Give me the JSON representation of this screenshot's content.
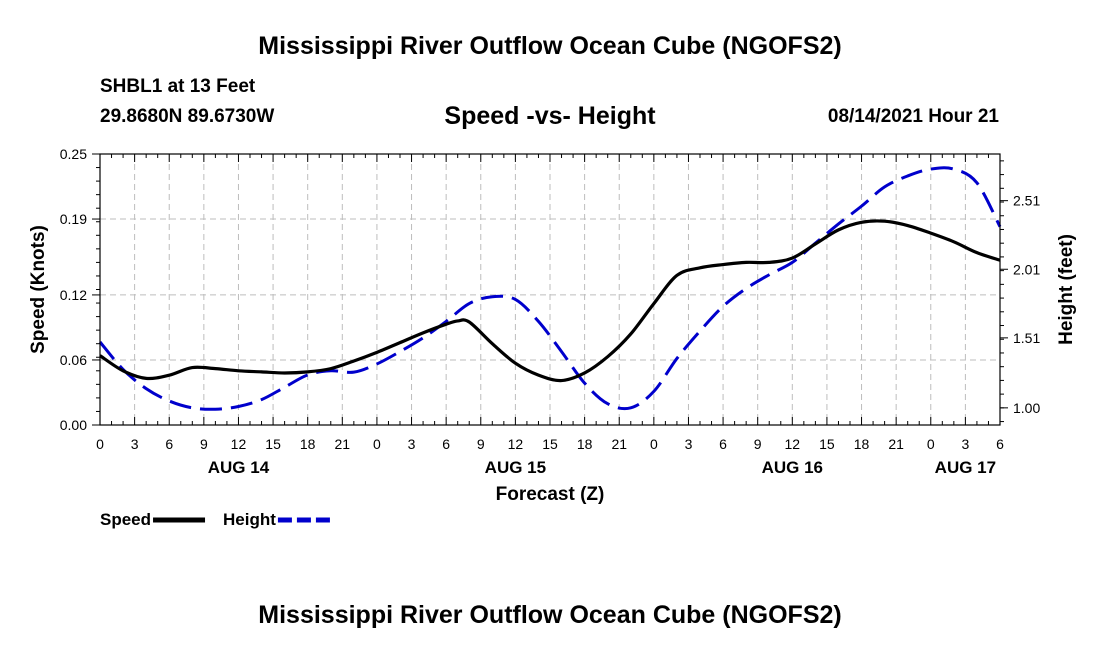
{
  "header": {
    "title": "Mississippi River Outflow Ocean Cube (NGOFS2)",
    "station": "SHBL1 at 13 Feet",
    "coords": "29.8680N  89.6730W",
    "subtitle": "Speed -vs- Height",
    "datetime": "08/14/2021 Hour 21"
  },
  "footer": {
    "title": "Mississippi River Outflow Ocean Cube (NGOFS2)"
  },
  "chart_data": {
    "type": "line",
    "title": "Speed -vs- Height",
    "xlabel": "Forecast (Z)",
    "ylabel": "Speed (Knots)",
    "y2label": "Height (feet)",
    "xlim": [
      0,
      78
    ],
    "ylim": [
      0,
      0.25
    ],
    "y2lim": [
      0.875,
      2.85
    ],
    "grid": true,
    "x_ticks": [
      0,
      3,
      6,
      9,
      12,
      15,
      18,
      21,
      24,
      27,
      30,
      33,
      36,
      39,
      42,
      45,
      48,
      51,
      54,
      57,
      60,
      63,
      66,
      69,
      72,
      75,
      78
    ],
    "x_tick_labels": [
      "0",
      "3",
      "6",
      "9",
      "12",
      "15",
      "18",
      "21",
      "0",
      "3",
      "6",
      "9",
      "12",
      "15",
      "18",
      "21",
      "0",
      "3",
      "6",
      "9",
      "12",
      "15",
      "18",
      "21",
      "0",
      "3",
      "6"
    ],
    "date_labels": [
      {
        "x": 12,
        "label": "AUG 14"
      },
      {
        "x": 36,
        "label": "AUG 15"
      },
      {
        "x": 60,
        "label": "AUG 16"
      },
      {
        "x": 75,
        "label": "AUG 17"
      }
    ],
    "y_ticks": [
      0.0,
      0.06,
      0.12,
      0.19,
      0.25
    ],
    "y_tick_labels": [
      "0.00",
      "0.06",
      "0.12",
      "0.19",
      "0.25"
    ],
    "y2_ticks": [
      1.0,
      1.51,
      2.01,
      2.51
    ],
    "y2_tick_labels": [
      "1.00",
      "1.51",
      "2.01",
      "2.51"
    ],
    "series": [
      {
        "name": "Speed",
        "axis": "left",
        "color": "#000000",
        "style": "solid",
        "x": [
          0,
          2,
          4,
          6,
          8,
          10,
          12,
          14,
          16,
          18,
          20,
          22,
          24,
          26,
          28,
          30,
          31,
          32,
          34,
          36,
          38,
          40,
          42,
          44,
          46,
          48,
          50,
          52,
          54,
          56,
          58,
          60,
          62,
          64,
          66,
          68,
          70,
          72,
          74,
          76,
          78
        ],
        "values": [
          0.064,
          0.05,
          0.043,
          0.046,
          0.053,
          0.052,
          0.05,
          0.049,
          0.048,
          0.049,
          0.052,
          0.059,
          0.067,
          0.076,
          0.085,
          0.093,
          0.096,
          0.095,
          0.075,
          0.057,
          0.046,
          0.041,
          0.048,
          0.063,
          0.084,
          0.112,
          0.138,
          0.145,
          0.148,
          0.15,
          0.15,
          0.154,
          0.167,
          0.18,
          0.187,
          0.188,
          0.184,
          0.177,
          0.169,
          0.159,
          0.152
        ]
      },
      {
        "name": "Height",
        "axis": "right",
        "color": "#0000cc",
        "style": "dashed",
        "x": [
          0,
          2,
          4,
          6,
          8,
          10,
          12,
          14,
          16,
          18,
          20,
          22,
          24,
          26,
          28,
          30,
          32,
          34,
          36,
          38,
          40,
          42,
          44,
          46,
          48,
          50,
          52,
          54,
          56,
          58,
          60,
          62,
          64,
          66,
          68,
          70,
          72,
          74,
          76,
          78
        ],
        "values": [
          1.48,
          1.28,
          1.14,
          1.05,
          1.0,
          0.99,
          1.01,
          1.06,
          1.15,
          1.24,
          1.27,
          1.26,
          1.32,
          1.41,
          1.51,
          1.63,
          1.76,
          1.81,
          1.79,
          1.63,
          1.41,
          1.18,
          1.03,
          1.0,
          1.12,
          1.36,
          1.56,
          1.74,
          1.87,
          1.97,
          2.06,
          2.2,
          2.34,
          2.47,
          2.61,
          2.69,
          2.74,
          2.74,
          2.64,
          2.32
        ]
      }
    ],
    "legend": [
      {
        "label": "Speed",
        "color": "#000000",
        "style": "solid"
      },
      {
        "label": "Height",
        "color": "#0000cc",
        "style": "dashed"
      }
    ],
    "legend_position": "bottom-left"
  }
}
